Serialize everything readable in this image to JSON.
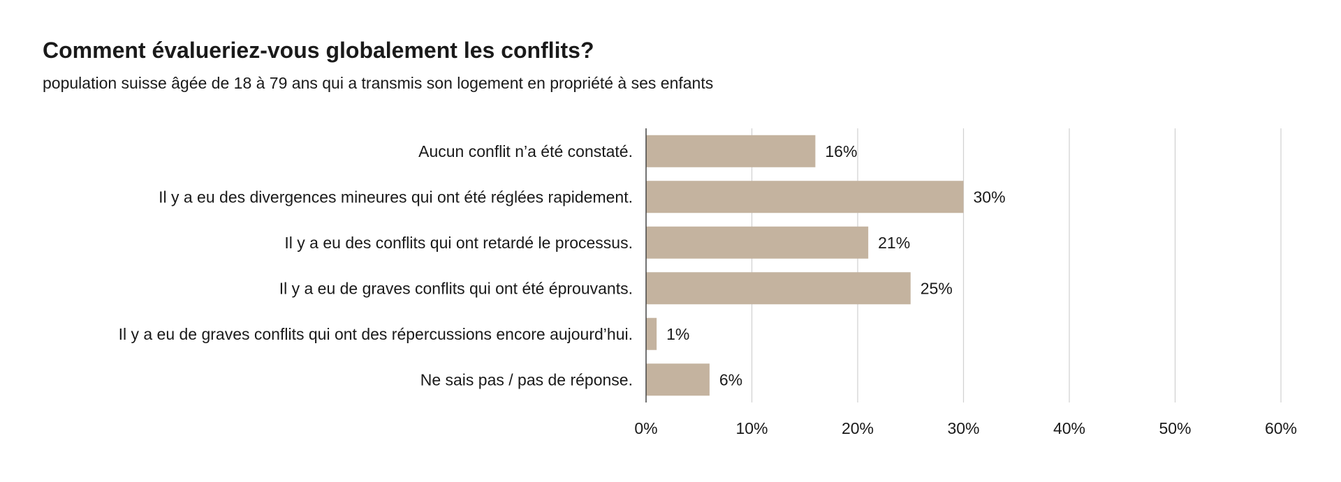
{
  "chart_data": {
    "type": "bar",
    "orientation": "horizontal",
    "title": "Comment évalueriez-vous globalement les conflits?",
    "subtitle": "population suisse âgée de 18 à 79 ans qui a transmis son logement en propriété à ses enfants",
    "categories": [
      "Aucun conflit n’a été constaté.",
      "Il y a eu des divergences mineures qui ont été réglées rapidement.",
      "Il y a eu des conflits qui ont retardé le processus.",
      "Il y a eu de graves conflits qui ont été éprouvants.",
      "Il y a eu de graves conflits qui ont des répercussions encore aujourd’hui.",
      "Ne sais pas / pas de réponse."
    ],
    "values": [
      16,
      30,
      21,
      25,
      1,
      6
    ],
    "data_labels": [
      "16%",
      "30%",
      "21%",
      "25%",
      "1%",
      "6%"
    ],
    "xlim": [
      0,
      60
    ],
    "xticks": [
      "0%",
      "10%",
      "20%",
      "30%",
      "40%",
      "50%",
      "60%"
    ],
    "xlabel": "",
    "ylabel": "",
    "grid": true,
    "bar_color": "#c4b39f",
    "grid_color": "#d0d0d0"
  }
}
